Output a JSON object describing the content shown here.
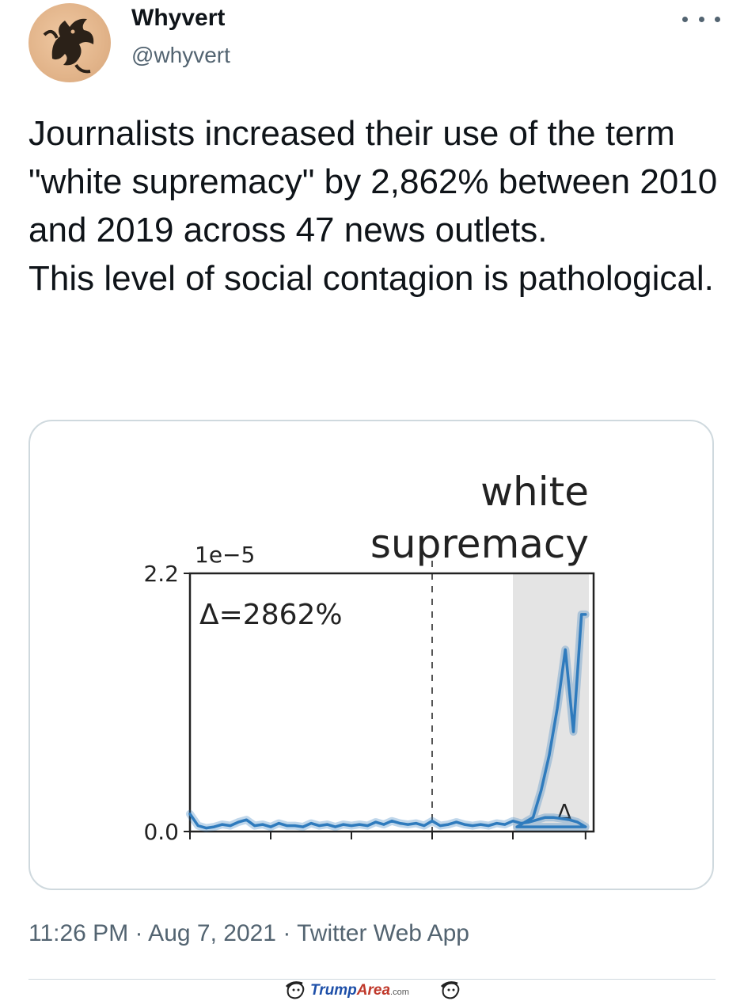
{
  "tweet": {
    "display_name": "Whyvert",
    "handle": "@whyvert",
    "text_lines": [
      "Journalists increased their use of the term \"white supremacy\" by 2,862% between 2010 and 2019 across 47 news outlets.",
      "This level of social contagion is pathological."
    ],
    "timestamp": "11:26 PM · Aug 7, 2021 · Twitter Web App",
    "more_icon": "more-horizontal-icon",
    "avatar_icon": "dragon-avatar-icon"
  },
  "chart_data": {
    "type": "line",
    "title_lines": [
      "white",
      "supremacy"
    ],
    "offset_label": "1e−5",
    "annotation": "Δ=2862%",
    "marker_label": "Δ",
    "yticks": [
      "2.2",
      "0.0"
    ],
    "ylim": [
      0,
      2.2
    ],
    "xlim": [
      1970,
      2020
    ],
    "vline_x": 2000,
    "shaded_range": [
      2010,
      2019
    ],
    "line_color": "#2f7bbd",
    "series": [
      {
        "x": [
          1970,
          1971,
          1972,
          1973,
          1974,
          1975,
          1976,
          1977,
          1978,
          1979,
          1980,
          1981,
          1982,
          1983,
          1984,
          1985,
          1986,
          1987,
          1988,
          1989,
          1990,
          1991,
          1992,
          1993,
          1994,
          1995,
          1996,
          1997,
          1998,
          1999,
          2000,
          2001,
          2002,
          2003,
          2004,
          2005,
          2006,
          2007,
          2008,
          2009,
          2010,
          2011,
          2012,
          2013,
          2014,
          2015,
          2016,
          2017,
          2018,
          2019
        ],
        "y": [
          0.15,
          0.05,
          0.03,
          0.04,
          0.06,
          0.05,
          0.08,
          0.1,
          0.05,
          0.06,
          0.04,
          0.07,
          0.05,
          0.05,
          0.04,
          0.07,
          0.05,
          0.06,
          0.04,
          0.06,
          0.05,
          0.06,
          0.05,
          0.08,
          0.06,
          0.09,
          0.07,
          0.06,
          0.07,
          0.05,
          0.09,
          0.05,
          0.06,
          0.08,
          0.06,
          0.05,
          0.06,
          0.05,
          0.07,
          0.06,
          0.09,
          0.07,
          0.08,
          0.1,
          0.12,
          0.12,
          0.11,
          0.1,
          0.08,
          0.04
        ],
        "y_tail": [
          [
            2010.5,
            0.04
          ],
          [
            2011.5,
            0.08
          ],
          [
            2012.5,
            0.12
          ],
          [
            2013.5,
            0.35
          ],
          [
            2014.5,
            0.65
          ],
          [
            2015.5,
            1.05
          ],
          [
            2016.5,
            1.55
          ],
          [
            2017.5,
            0.85
          ],
          [
            2018.5,
            1.85
          ],
          [
            2019.0,
            1.85
          ]
        ]
      }
    ]
  },
  "watermark": {
    "part1": "Trump",
    "part2": "Area",
    "suffix": ".com"
  }
}
